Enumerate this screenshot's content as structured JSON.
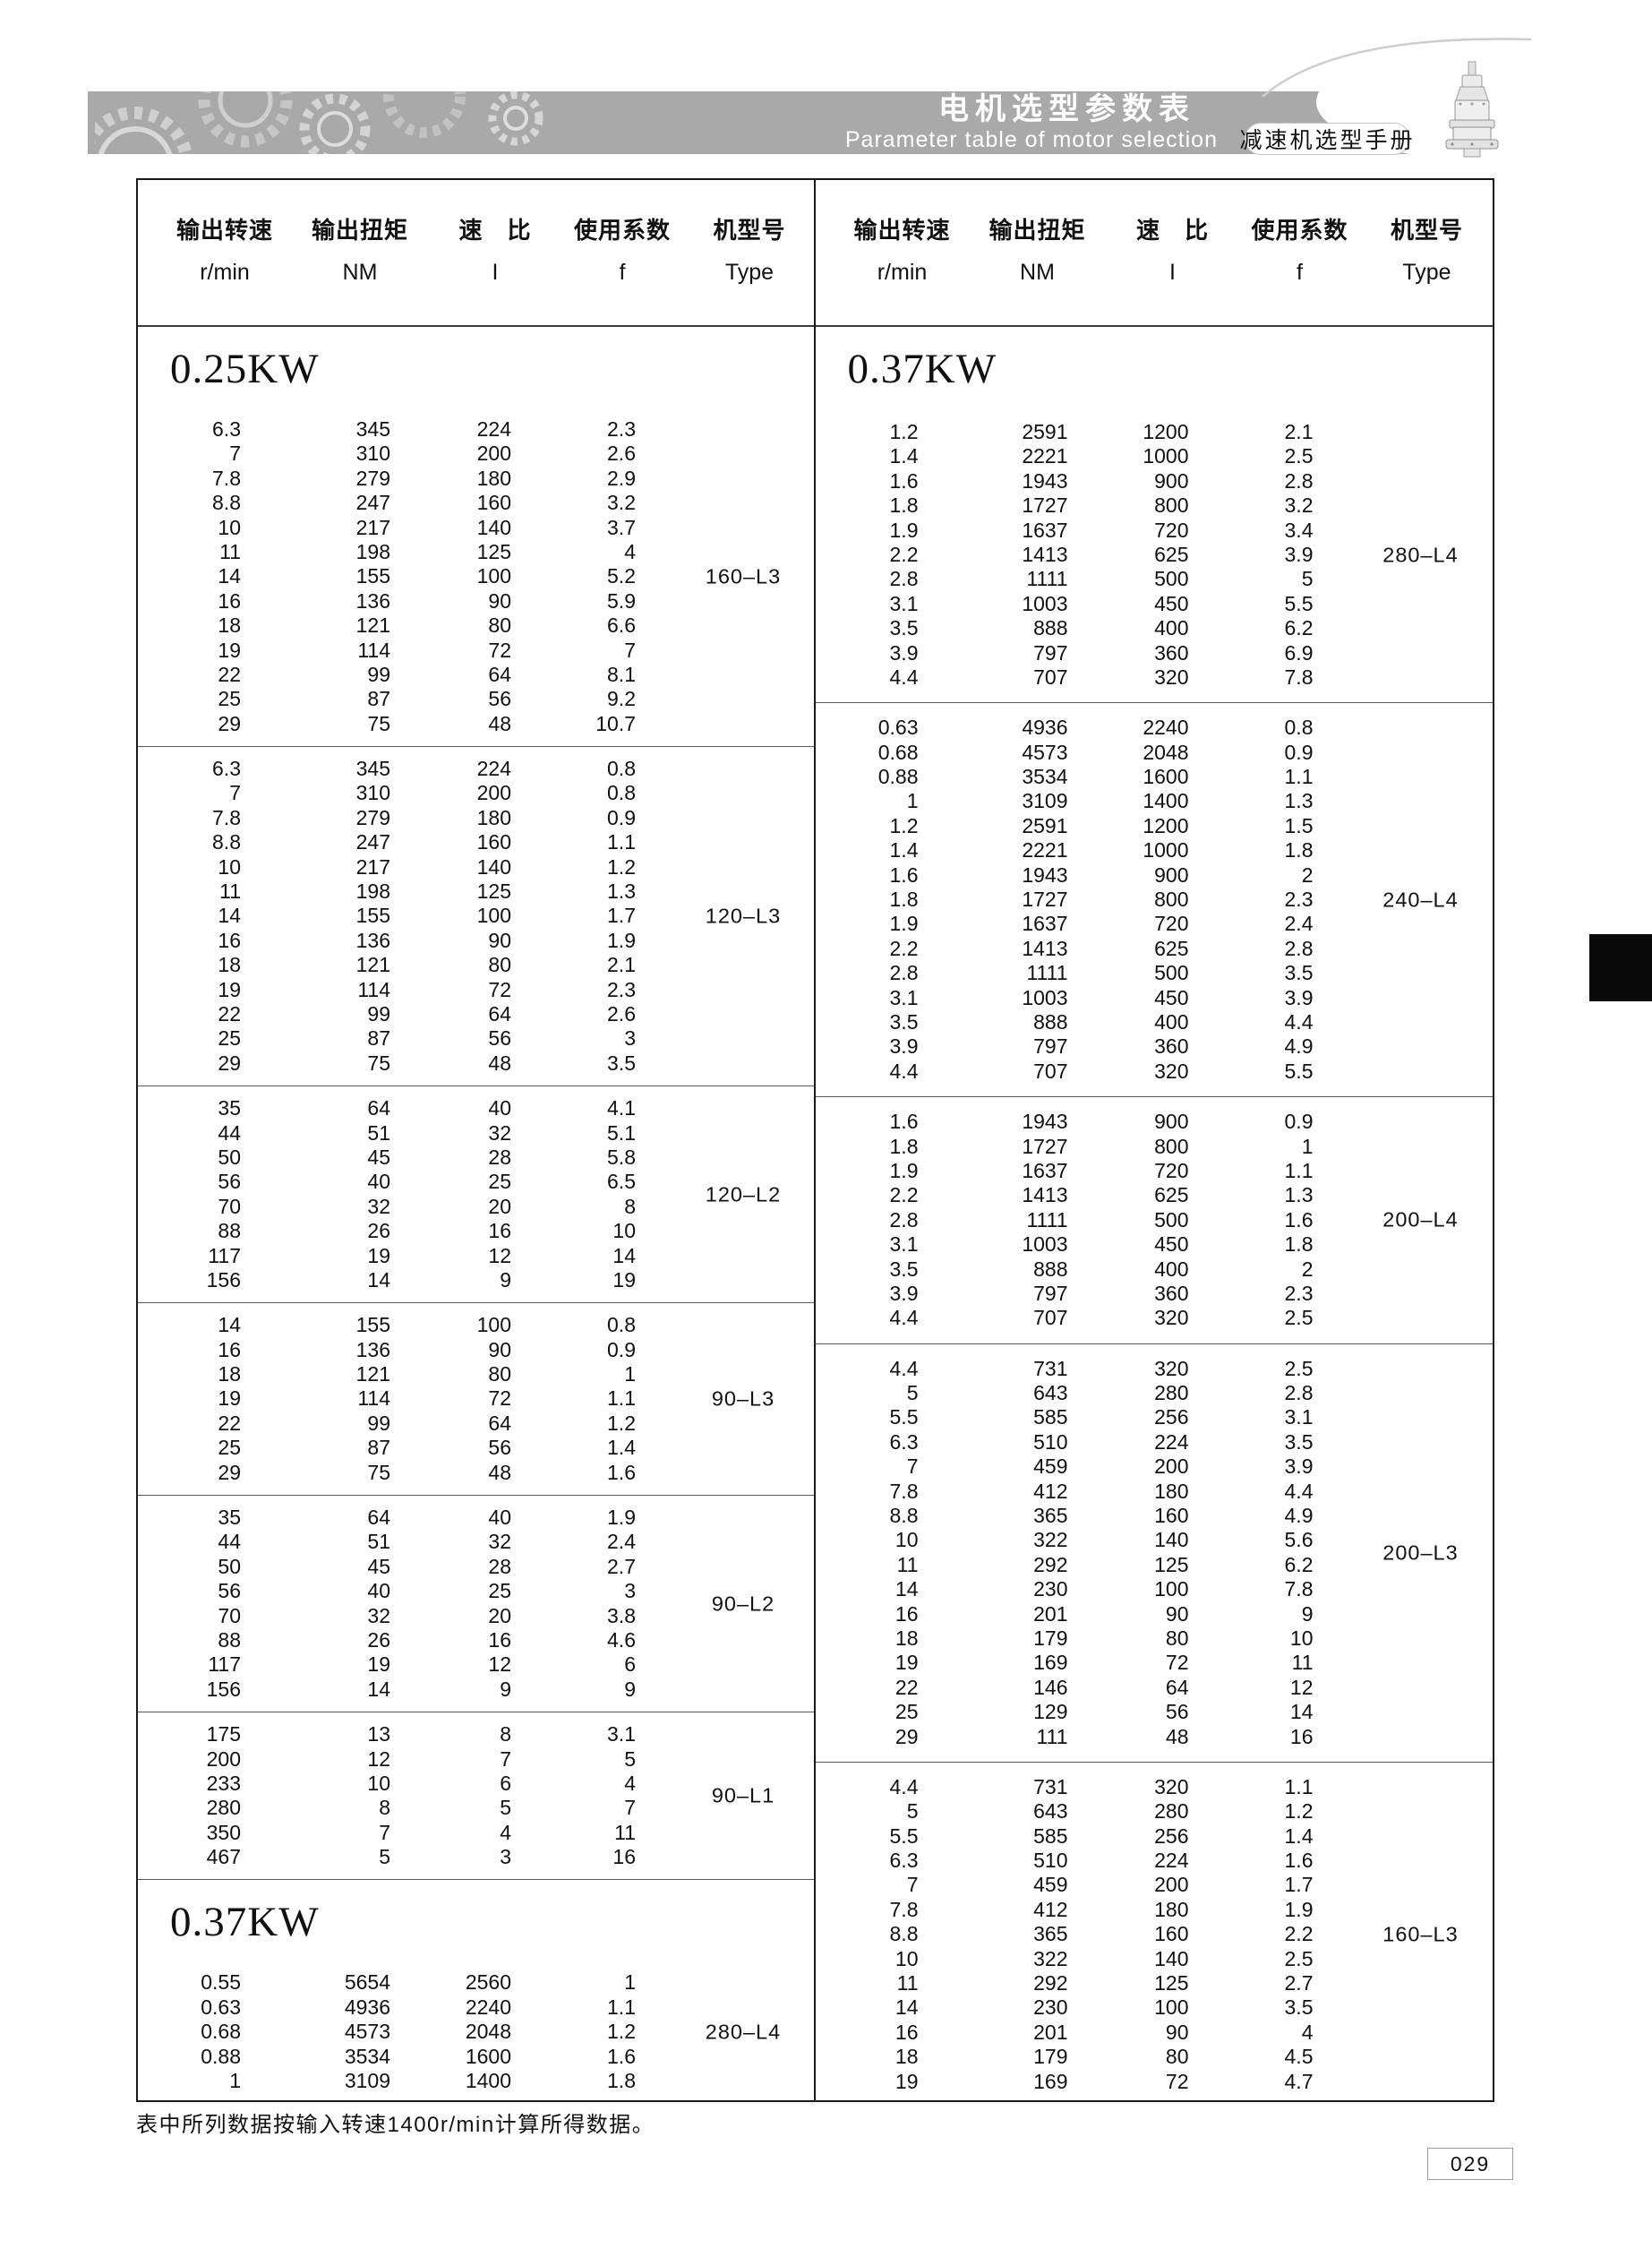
{
  "header": {
    "title_zh": "电机选型参数表",
    "title_en": "Parameter table of motor selection",
    "badge": "减速机选型手册",
    "icons": {
      "left_decor": "gear-cluster",
      "right_product": "planetary-gear-reducer"
    }
  },
  "colors": {
    "band_gray": "#a9a9a9",
    "edge_tab": "#0a0a0a",
    "text": "#111111",
    "separator": "#5a5a5a"
  },
  "table": {
    "column_headers": [
      {
        "zh": "输出转速",
        "sub": "r/min"
      },
      {
        "zh": "输出扭矩",
        "sub": "NM"
      },
      {
        "zh": "速　比",
        "sub": "I"
      },
      {
        "zh": "使用系数",
        "sub": "f"
      },
      {
        "zh": "机型号",
        "sub": "Type"
      }
    ],
    "halves": [
      {
        "items": [
          {
            "kind": "heading",
            "text": "0.25KW"
          },
          {
            "kind": "block",
            "type": "160–L3",
            "rows": [
              [
                "6.3",
                "345",
                "224",
                "2.3"
              ],
              [
                "7",
                "310",
                "200",
                "2.6"
              ],
              [
                "7.8",
                "279",
                "180",
                "2.9"
              ],
              [
                "8.8",
                "247",
                "160",
                "3.2"
              ],
              [
                "10",
                "217",
                "140",
                "3.7"
              ],
              [
                "11",
                "198",
                "125",
                "4"
              ],
              [
                "14",
                "155",
                "100",
                "5.2"
              ],
              [
                "16",
                "136",
                "90",
                "5.9"
              ],
              [
                "18",
                "121",
                "80",
                "6.6"
              ],
              [
                "19",
                "114",
                "72",
                "7"
              ],
              [
                "22",
                "99",
                "64",
                "8.1"
              ],
              [
                "25",
                "87",
                "56",
                "9.2"
              ],
              [
                "29",
                "75",
                "48",
                "10.7"
              ]
            ]
          },
          {
            "kind": "block",
            "type": "120–L3",
            "rows": [
              [
                "6.3",
                "345",
                "224",
                "0.8"
              ],
              [
                "7",
                "310",
                "200",
                "0.8"
              ],
              [
                "7.8",
                "279",
                "180",
                "0.9"
              ],
              [
                "8.8",
                "247",
                "160",
                "1.1"
              ],
              [
                "10",
                "217",
                "140",
                "1.2"
              ],
              [
                "11",
                "198",
                "125",
                "1.3"
              ],
              [
                "14",
                "155",
                "100",
                "1.7"
              ],
              [
                "16",
                "136",
                "90",
                "1.9"
              ],
              [
                "18",
                "121",
                "80",
                "2.1"
              ],
              [
                "19",
                "114",
                "72",
                "2.3"
              ],
              [
                "22",
                "99",
                "64",
                "2.6"
              ],
              [
                "25",
                "87",
                "56",
                "3"
              ],
              [
                "29",
                "75",
                "48",
                "3.5"
              ]
            ]
          },
          {
            "kind": "block",
            "type": "120–L2",
            "rows": [
              [
                "35",
                "64",
                "40",
                "4.1"
              ],
              [
                "44",
                "51",
                "32",
                "5.1"
              ],
              [
                "50",
                "45",
                "28",
                "5.8"
              ],
              [
                "56",
                "40",
                "25",
                "6.5"
              ],
              [
                "70",
                "32",
                "20",
                "8"
              ],
              [
                "88",
                "26",
                "16",
                "10"
              ],
              [
                "117",
                "19",
                "12",
                "14"
              ],
              [
                "156",
                "14",
                "9",
                "19"
              ]
            ]
          },
          {
            "kind": "block",
            "type": "90–L3",
            "rows": [
              [
                "14",
                "155",
                "100",
                "0.8"
              ],
              [
                "16",
                "136",
                "90",
                "0.9"
              ],
              [
                "18",
                "121",
                "80",
                "1"
              ],
              [
                "19",
                "114",
                "72",
                "1.1"
              ],
              [
                "22",
                "99",
                "64",
                "1.2"
              ],
              [
                "25",
                "87",
                "56",
                "1.4"
              ],
              [
                "29",
                "75",
                "48",
                "1.6"
              ]
            ]
          },
          {
            "kind": "block",
            "type": "90–L2",
            "rows": [
              [
                "35",
                "64",
                "40",
                "1.9"
              ],
              [
                "44",
                "51",
                "32",
                "2.4"
              ],
              [
                "50",
                "45",
                "28",
                "2.7"
              ],
              [
                "56",
                "40",
                "25",
                "3"
              ],
              [
                "70",
                "32",
                "20",
                "3.8"
              ],
              [
                "88",
                "26",
                "16",
                "4.6"
              ],
              [
                "117",
                "19",
                "12",
                "6"
              ],
              [
                "156",
                "14",
                "9",
                "9"
              ]
            ]
          },
          {
            "kind": "block",
            "type": "90–L1",
            "rows": [
              [
                "175",
                "13",
                "8",
                "3.1"
              ],
              [
                "200",
                "12",
                "7",
                "5"
              ],
              [
                "233",
                "10",
                "6",
                "4"
              ],
              [
                "280",
                "8",
                "5",
                "7"
              ],
              [
                "350",
                "7",
                "4",
                "11"
              ],
              [
                "467",
                "5",
                "3",
                "16"
              ]
            ]
          },
          {
            "kind": "heading",
            "text": "0.37KW"
          },
          {
            "kind": "block",
            "type": "280–L4",
            "rows": [
              [
                "0.55",
                "5654",
                "2560",
                "1"
              ],
              [
                "0.63",
                "4936",
                "2240",
                "1.1"
              ],
              [
                "0.68",
                "4573",
                "2048",
                "1.2"
              ],
              [
                "0.88",
                "3534",
                "1600",
                "1.6"
              ],
              [
                "1",
                "3109",
                "1400",
                "1.8"
              ]
            ]
          }
        ]
      },
      {
        "items": [
          {
            "kind": "heading",
            "text": "0.37KW"
          },
          {
            "kind": "block",
            "type": "280–L4",
            "rows": [
              [
                "1.2",
                "2591",
                "1200",
                "2.1"
              ],
              [
                "1.4",
                "2221",
                "1000",
                "2.5"
              ],
              [
                "1.6",
                "1943",
                "900",
                "2.8"
              ],
              [
                "1.8",
                "1727",
                "800",
                "3.2"
              ],
              [
                "1.9",
                "1637",
                "720",
                "3.4"
              ],
              [
                "2.2",
                "1413",
                "625",
                "3.9"
              ],
              [
                "2.8",
                "1111",
                "500",
                "5"
              ],
              [
                "3.1",
                "1003",
                "450",
                "5.5"
              ],
              [
                "3.5",
                "888",
                "400",
                "6.2"
              ],
              [
                "3.9",
                "797",
                "360",
                "6.9"
              ],
              [
                "4.4",
                "707",
                "320",
                "7.8"
              ]
            ]
          },
          {
            "kind": "block",
            "type": "240–L4",
            "rows": [
              [
                "0.63",
                "4936",
                "2240",
                "0.8"
              ],
              [
                "0.68",
                "4573",
                "2048",
                "0.9"
              ],
              [
                "0.88",
                "3534",
                "1600",
                "1.1"
              ],
              [
                "1",
                "3109",
                "1400",
                "1.3"
              ],
              [
                "1.2",
                "2591",
                "1200",
                "1.5"
              ],
              [
                "1.4",
                "2221",
                "1000",
                "1.8"
              ],
              [
                "1.6",
                "1943",
                "900",
                "2"
              ],
              [
                "1.8",
                "1727",
                "800",
                "2.3"
              ],
              [
                "1.9",
                "1637",
                "720",
                "2.4"
              ],
              [
                "2.2",
                "1413",
                "625",
                "2.8"
              ],
              [
                "2.8",
                "1111",
                "500",
                "3.5"
              ],
              [
                "3.1",
                "1003",
                "450",
                "3.9"
              ],
              [
                "3.5",
                "888",
                "400",
                "4.4"
              ],
              [
                "3.9",
                "797",
                "360",
                "4.9"
              ],
              [
                "4.4",
                "707",
                "320",
                "5.5"
              ]
            ]
          },
          {
            "kind": "block",
            "type": "200–L4",
            "rows": [
              [
                "1.6",
                "1943",
                "900",
                "0.9"
              ],
              [
                "1.8",
                "1727",
                "800",
                "1"
              ],
              [
                "1.9",
                "1637",
                "720",
                "1.1"
              ],
              [
                "2.2",
                "1413",
                "625",
                "1.3"
              ],
              [
                "2.8",
                "1111",
                "500",
                "1.6"
              ],
              [
                "3.1",
                "1003",
                "450",
                "1.8"
              ],
              [
                "3.5",
                "888",
                "400",
                "2"
              ],
              [
                "3.9",
                "797",
                "360",
                "2.3"
              ],
              [
                "4.4",
                "707",
                "320",
                "2.5"
              ]
            ]
          },
          {
            "kind": "block",
            "type": "200–L3",
            "rows": [
              [
                "4.4",
                "731",
                "320",
                "2.5"
              ],
              [
                "5",
                "643",
                "280",
                "2.8"
              ],
              [
                "5.5",
                "585",
                "256",
                "3.1"
              ],
              [
                "6.3",
                "510",
                "224",
                "3.5"
              ],
              [
                "7",
                "459",
                "200",
                "3.9"
              ],
              [
                "7.8",
                "412",
                "180",
                "4.4"
              ],
              [
                "8.8",
                "365",
                "160",
                "4.9"
              ],
              [
                "10",
                "322",
                "140",
                "5.6"
              ],
              [
                "11",
                "292",
                "125",
                "6.2"
              ],
              [
                "14",
                "230",
                "100",
                "7.8"
              ],
              [
                "16",
                "201",
                "90",
                "9"
              ],
              [
                "18",
                "179",
                "80",
                "10"
              ],
              [
                "19",
                "169",
                "72",
                "11"
              ],
              [
                "22",
                "146",
                "64",
                "12"
              ],
              [
                "25",
                "129",
                "56",
                "14"
              ],
              [
                "29",
                "111",
                "48",
                "16"
              ]
            ]
          },
          {
            "kind": "block",
            "type": "160–L3",
            "rows": [
              [
                "4.4",
                "731",
                "320",
                "1.1"
              ],
              [
                "5",
                "643",
                "280",
                "1.2"
              ],
              [
                "5.5",
                "585",
                "256",
                "1.4"
              ],
              [
                "6.3",
                "510",
                "224",
                "1.6"
              ],
              [
                "7",
                "459",
                "200",
                "1.7"
              ],
              [
                "7.8",
                "412",
                "180",
                "1.9"
              ],
              [
                "8.8",
                "365",
                "160",
                "2.2"
              ],
              [
                "10",
                "322",
                "140",
                "2.5"
              ],
              [
                "11",
                "292",
                "125",
                "2.7"
              ],
              [
                "14",
                "230",
                "100",
                "3.5"
              ],
              [
                "16",
                "201",
                "90",
                "4"
              ],
              [
                "18",
                "179",
                "80",
                "4.5"
              ],
              [
                "19",
                "169",
                "72",
                "4.7"
              ]
            ]
          }
        ]
      }
    ]
  },
  "footer": {
    "note": "表中所列数据按输入转速1400r/min计算所得数据。"
  },
  "page": {
    "number": "029"
  }
}
